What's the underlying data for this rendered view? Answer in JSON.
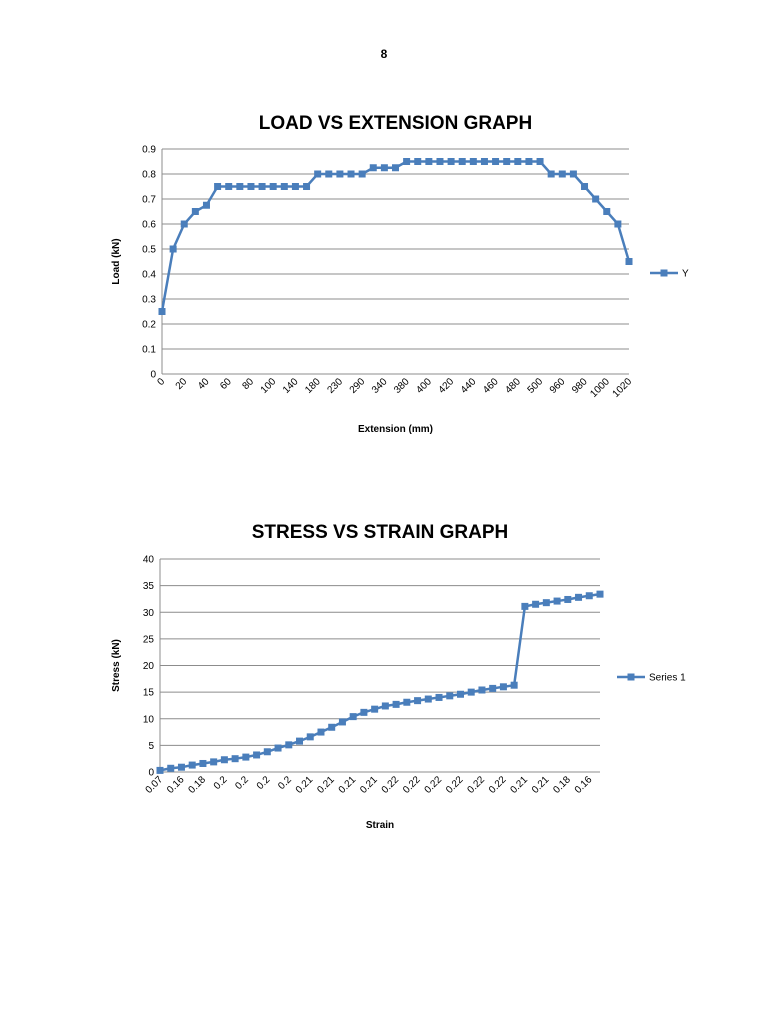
{
  "page_number": "8",
  "chart_data": [
    {
      "type": "line",
      "title": "LOAD VS EXTENSION GRAPH",
      "xlabel": "Extension (mm)",
      "ylabel": "Load (kN)",
      "ylim": [
        0,
        0.9
      ],
      "yticks": [
        "0",
        "0.1",
        "0.2",
        "0.3",
        "0.4",
        "0.5",
        "0.6",
        "0.7",
        "0.8",
        "0.9"
      ],
      "categories": [
        "0",
        "",
        "20",
        "",
        "40",
        "",
        "60",
        "",
        "80",
        "",
        "100",
        "",
        "140",
        "",
        "180",
        "",
        "230",
        "",
        "290",
        "",
        "340",
        "",
        "380",
        "",
        "400",
        "",
        "420",
        "",
        "440",
        "",
        "460",
        "",
        "480",
        "",
        "500",
        "",
        "960",
        "",
        "980",
        "",
        "1000",
        "",
        "1020"
      ],
      "series": [
        {
          "name": "Y",
          "color": "#4a7ebb",
          "values": [
            0.25,
            0.5,
            0.6,
            0.65,
            0.675,
            0.75,
            0.75,
            0.75,
            0.75,
            0.75,
            0.75,
            0.75,
            0.75,
            0.75,
            0.8,
            0.8,
            0.8,
            0.8,
            0.8,
            0.825,
            0.825,
            0.825,
            0.85,
            0.85,
            0.85,
            0.85,
            0.85,
            0.85,
            0.85,
            0.85,
            0.85,
            0.85,
            0.85,
            0.85,
            0.85,
            0.8,
            0.8,
            0.8,
            0.75,
            0.7,
            0.65,
            0.6,
            0.45
          ]
        }
      ],
      "legend": "right",
      "grid": true
    },
    {
      "type": "line",
      "title": "STRESS VS STRAIN GRAPH",
      "xlabel": "Strain",
      "ylabel": "Stress (kN)",
      "ylim": [
        0,
        40
      ],
      "yticks": [
        "0",
        "5",
        "10",
        "15",
        "20",
        "25",
        "30",
        "35",
        "40"
      ],
      "categories": [
        "0.07",
        "",
        "0.16",
        "",
        "0.18",
        "",
        "0.2",
        "",
        "0.2",
        "",
        "0.2",
        "",
        "0.2",
        "",
        "0.21",
        "",
        "0.21",
        "",
        "0.21",
        "",
        "0.21",
        "",
        "0.22",
        "",
        "0.22",
        "",
        "0.22",
        "",
        "0.22",
        "",
        "0.22",
        "",
        "0.22",
        "",
        "0.21",
        "",
        "0.21",
        "",
        "0.18",
        "",
        "0.16",
        ""
      ],
      "series": [
        {
          "name": "Series 1",
          "color": "#4a7ebb",
          "values": [
            0.3,
            0.7,
            0.9,
            1.3,
            1.6,
            1.9,
            2.3,
            2.5,
            2.8,
            3.2,
            3.8,
            4.5,
            5.1,
            5.8,
            6.6,
            7.5,
            8.4,
            9.4,
            10.4,
            11.2,
            11.8,
            12.4,
            12.7,
            13.1,
            13.4,
            13.7,
            14.0,
            14.3,
            14.6,
            15.0,
            15.4,
            15.7,
            16.0,
            16.3,
            31.1,
            31.5,
            31.8,
            32.1,
            32.4,
            32.8,
            33.1,
            33.4
          ]
        }
      ],
      "legend": "right",
      "grid": true
    }
  ]
}
